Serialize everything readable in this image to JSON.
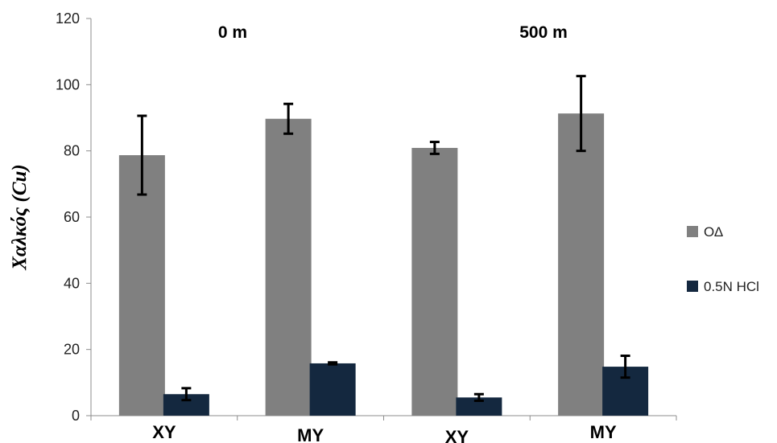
{
  "chart_data": {
    "type": "bar",
    "ylabel": "Χαλκός (Cu)",
    "ylim": [
      0,
      120
    ],
    "yticks": [
      "0",
      "20",
      "40",
      "60",
      "80",
      "100",
      "120"
    ],
    "categories": [
      "XY",
      "MY",
      "XY",
      "MY"
    ],
    "group_labels": [
      "0 m",
      "500 m"
    ],
    "series": [
      {
        "name": "ΟΔ",
        "color": "#808080",
        "values": [
          78.7,
          89.7,
          80.9,
          91.3
        ],
        "errors": [
          11.9,
          4.5,
          1.8,
          11.3
        ]
      },
      {
        "name": "0.5N HCl",
        "color": "#14283f",
        "values": [
          6.5,
          15.8,
          5.5,
          14.8
        ],
        "errors": [
          1.8,
          0.3,
          1.0,
          3.3
        ]
      }
    ],
    "grid": false,
    "legend_position": "right"
  }
}
